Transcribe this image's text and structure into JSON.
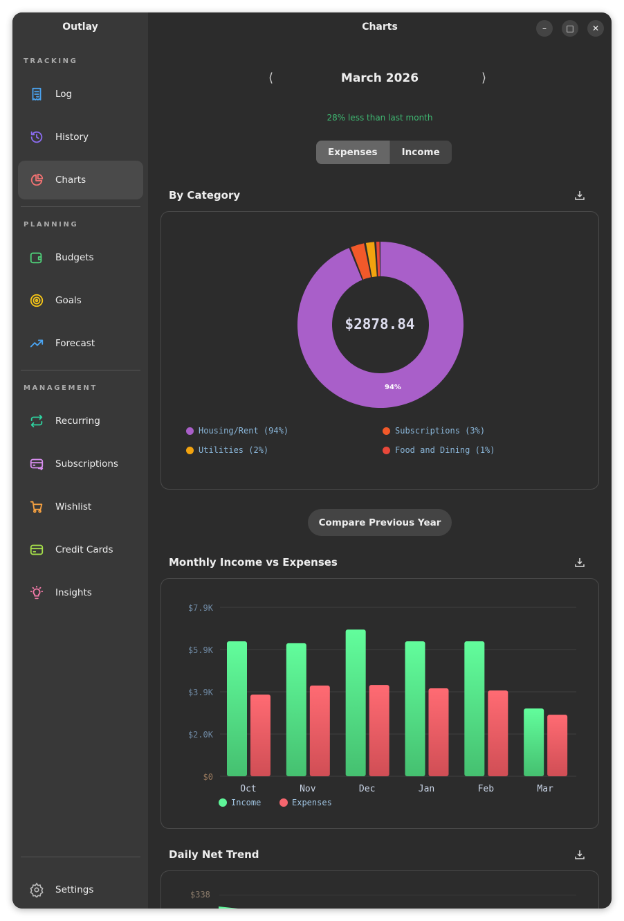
{
  "app": {
    "title": "Outlay",
    "window_title": "Charts"
  },
  "sidebar": {
    "sections": [
      {
        "label": "TRACKING",
        "items": [
          {
            "label": "Log",
            "icon": "receipt-icon",
            "color": "#4aa3f0"
          },
          {
            "label": "History",
            "icon": "history-icon",
            "color": "#8b6cf0"
          },
          {
            "label": "Charts",
            "icon": "pie-chart-icon",
            "color": "#f27272",
            "active": true
          }
        ]
      },
      {
        "label": "PLANNING",
        "items": [
          {
            "label": "Budgets",
            "icon": "wallet-icon",
            "color": "#4fd27a"
          },
          {
            "label": "Goals",
            "icon": "target-icon",
            "color": "#f5c518"
          },
          {
            "label": "Forecast",
            "icon": "trending-up-icon",
            "color": "#4aa3f0"
          }
        ]
      },
      {
        "label": "MANAGEMENT",
        "items": [
          {
            "label": "Recurring",
            "icon": "repeat-icon",
            "color": "#2ed3a0"
          },
          {
            "label": "Subscriptions",
            "icon": "card-transfer-icon",
            "color": "#d98ef0"
          },
          {
            "label": "Wishlist",
            "icon": "cart-icon",
            "color": "#f5a040"
          },
          {
            "label": "Credit Cards",
            "icon": "credit-card-icon",
            "color": "#a6e04a"
          },
          {
            "label": "Insights",
            "icon": "lightbulb-icon",
            "color": "#f27aa8"
          }
        ]
      }
    ],
    "settings": "Settings"
  },
  "header": {
    "month": "March 2026",
    "delta": "28% less than last month",
    "tabs": [
      "Expenses",
      "Income"
    ],
    "active_tab": "Expenses"
  },
  "category": {
    "title": "By Category",
    "total": "$2878.84",
    "slice_label": "94%"
  },
  "compare_button": "Compare Previous Year",
  "monthly": {
    "title": "Monthly Income vs Expenses"
  },
  "daily": {
    "title": "Daily Net Trend",
    "y_tick": "$338"
  },
  "chart_data": [
    {
      "type": "pie",
      "title": "By Category",
      "center_label": "$2878.84",
      "slices": [
        {
          "name": "Housing/Rent",
          "pct": 94,
          "label": "Housing/Rent (94%)",
          "color": "#a95fc9"
        },
        {
          "name": "Subscriptions",
          "pct": 3,
          "label": "Subscriptions (3%)",
          "color": "#f2592a"
        },
        {
          "name": "Utilities",
          "pct": 2,
          "label": "Utilities (2%)",
          "color": "#f2a30f"
        },
        {
          "name": "Food and Dining",
          "pct": 1,
          "label": "Food and Dining (1%)",
          "color": "#e8483a"
        }
      ]
    },
    {
      "type": "bar",
      "title": "Monthly Income vs Expenses",
      "categories": [
        "Oct",
        "Nov",
        "Dec",
        "Jan",
        "Feb",
        "Mar"
      ],
      "series": [
        {
          "name": "Income",
          "color": "#5ef598",
          "values": [
            6310,
            6220,
            6860,
            6310,
            6310,
            3170
          ]
        },
        {
          "name": "Expenses",
          "color": "#f5666e",
          "values": [
            3820,
            4240,
            4270,
            4110,
            4010,
            2879
          ]
        }
      ],
      "y_ticks": [
        "$0",
        "$2.0K",
        "$3.9K",
        "$5.9K",
        "$7.9K"
      ],
      "ylim": [
        0,
        7900
      ],
      "grid": true,
      "legend": "bottom-left"
    }
  ]
}
